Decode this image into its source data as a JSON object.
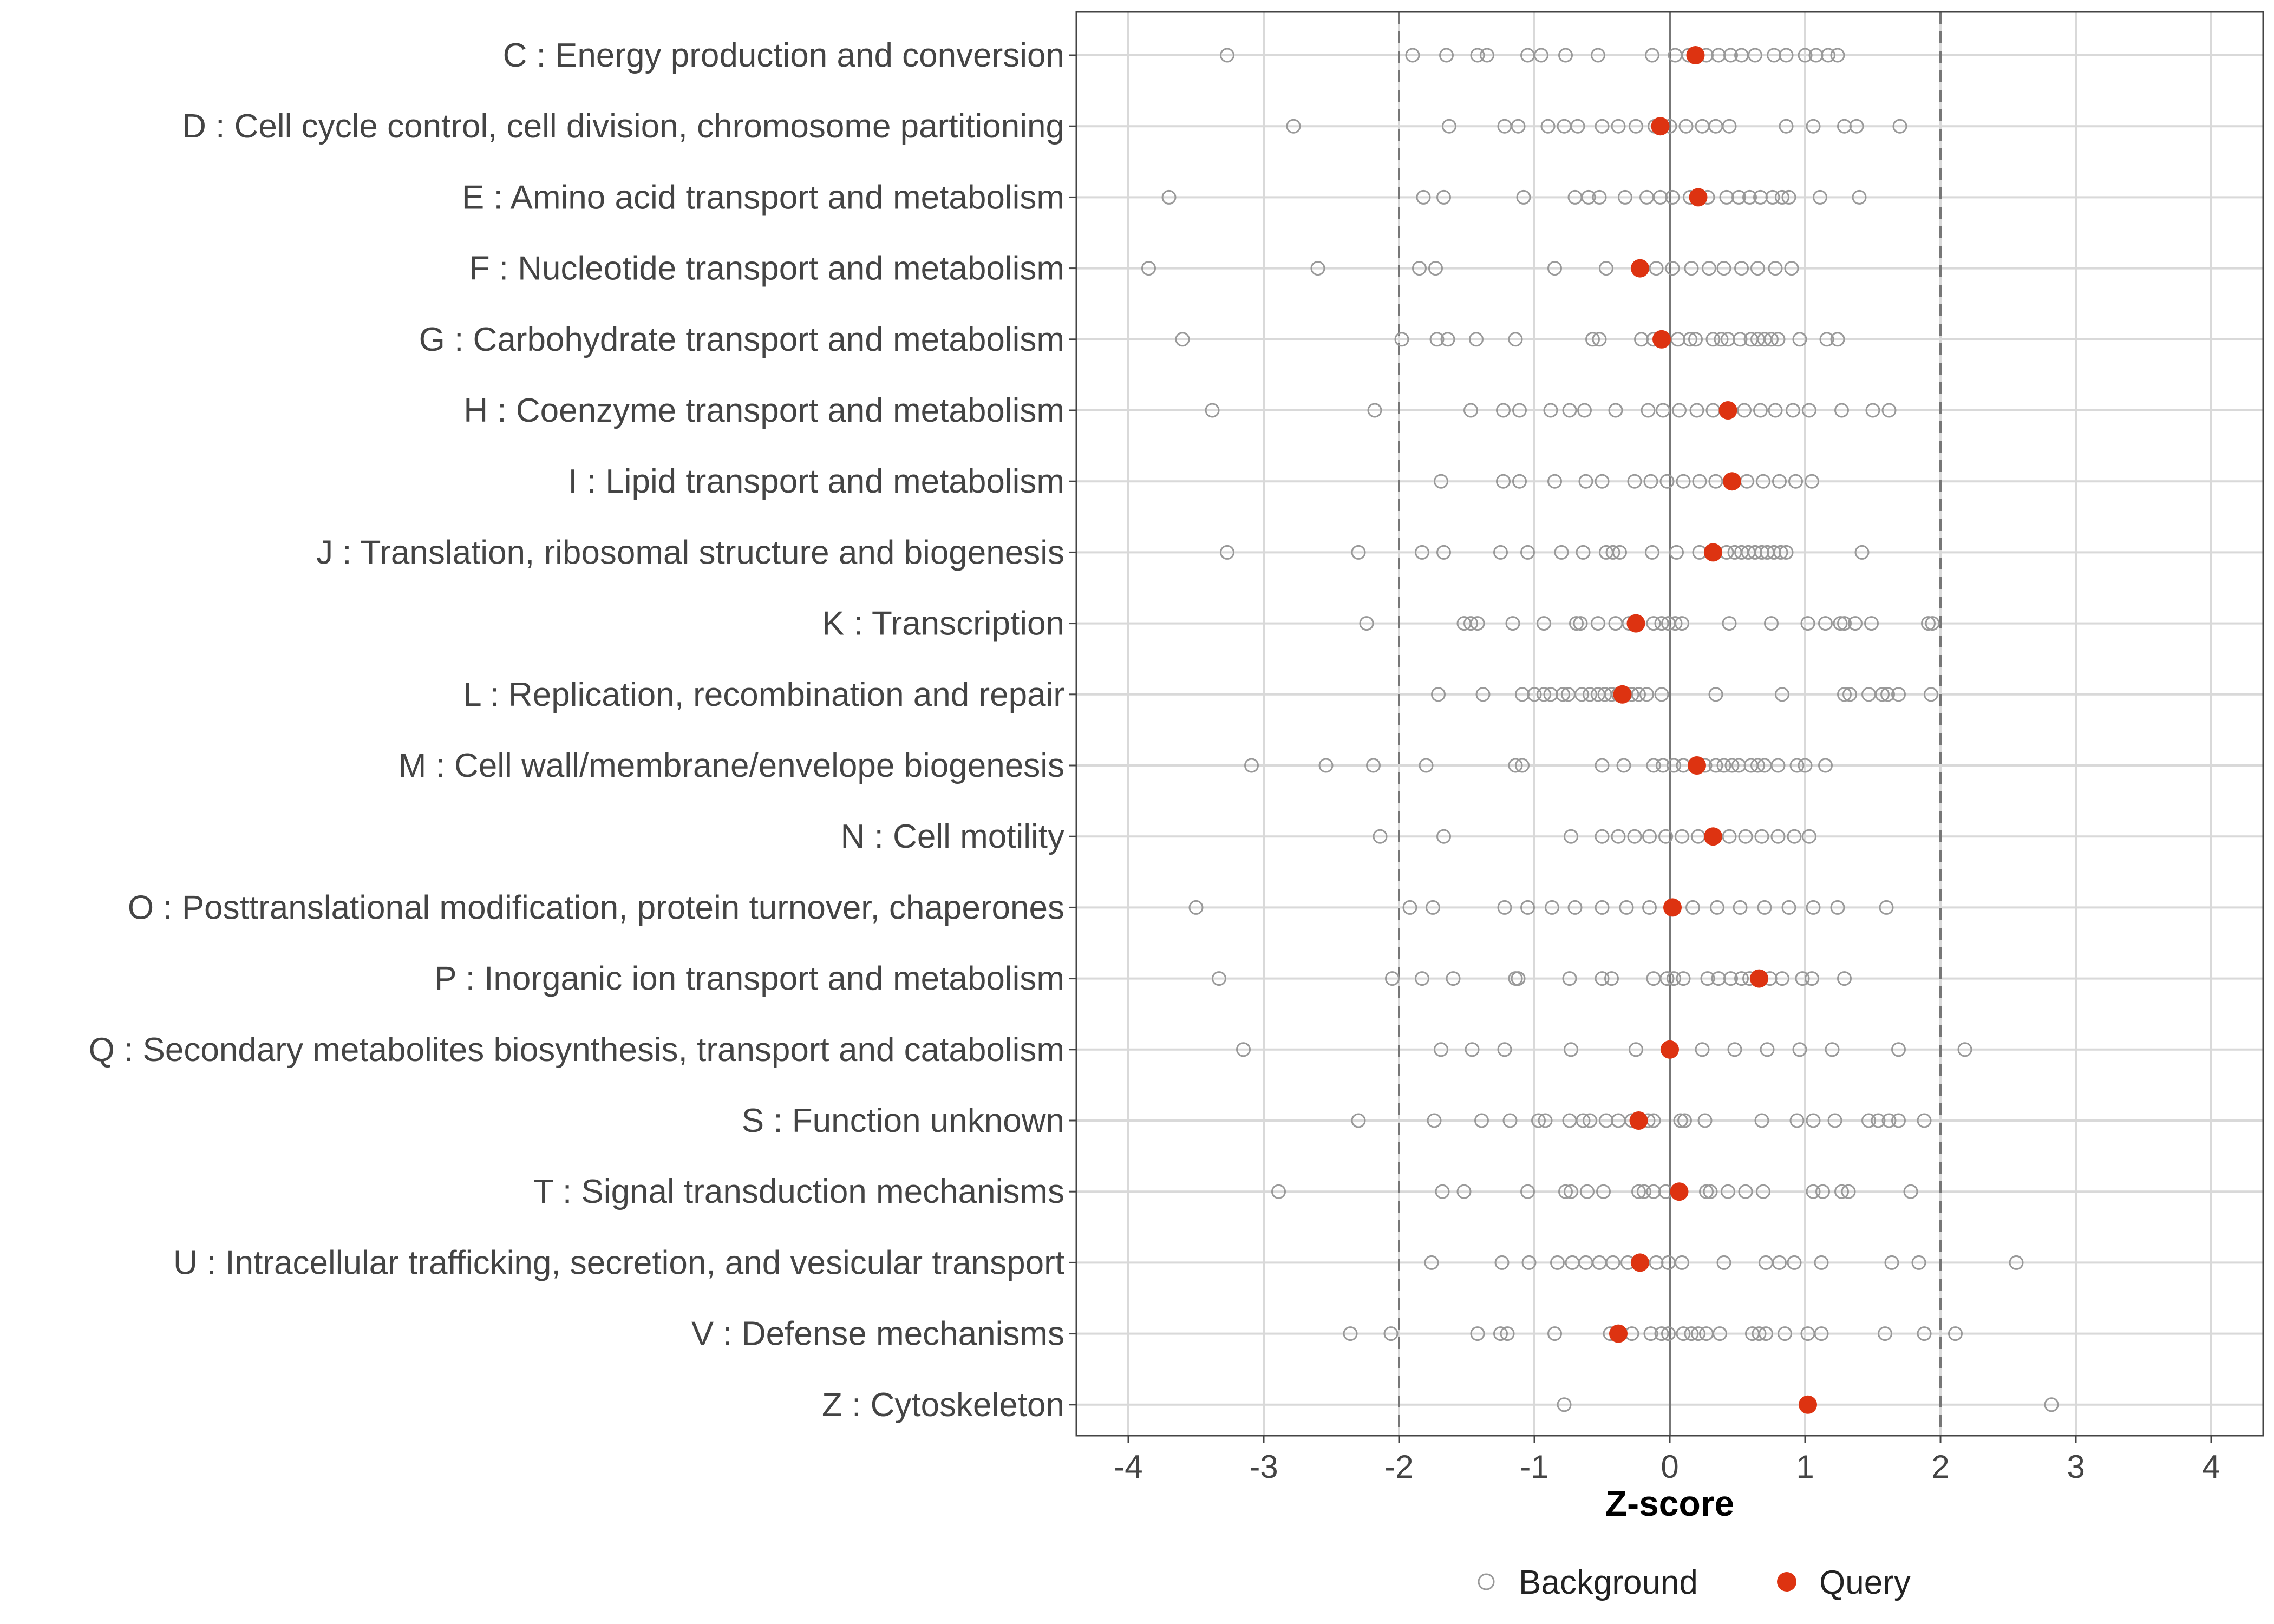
{
  "chart_data": {
    "type": "scatter",
    "title": "",
    "xlabel": "Z-score",
    "ylabel": "",
    "xlim": [
      -4.4,
      4.4
    ],
    "x_ticks": [
      -4,
      -3,
      -2,
      -1,
      0,
      1,
      2,
      3,
      4
    ],
    "x_tick_labels": [
      "-4",
      "-3",
      "-2",
      "-1",
      "0",
      "1",
      "2",
      "3",
      "4"
    ],
    "reference_lines": [
      {
        "x": -2,
        "style": "dashed"
      },
      {
        "x": 0,
        "style": "solid"
      },
      {
        "x": 2,
        "style": "dashed"
      }
    ],
    "grid": true,
    "legend": {
      "position": "bottom",
      "entries": [
        "Background",
        "Query"
      ]
    },
    "colors": {
      "background_stroke": "#999999",
      "query_fill": "#dd3311",
      "grid": "#d9d9d9",
      "refline": "#777777"
    },
    "categories": [
      {
        "label": "C : Energy production and conversion",
        "query": 0.19,
        "background": [
          -3.27,
          -1.9,
          -1.65,
          -1.42,
          -1.35,
          -1.05,
          -0.95,
          -0.77,
          -0.53,
          -0.13,
          0.04,
          0.14,
          0.27,
          0.36,
          0.45,
          0.53,
          0.63,
          0.77,
          0.86,
          1.0,
          1.08,
          1.17,
          1.24
        ]
      },
      {
        "label": "D : Cell cycle control, cell division, chromosome partitioning",
        "query": -0.07,
        "background": [
          -2.78,
          -1.63,
          -1.22,
          -1.12,
          -0.9,
          -0.78,
          -0.68,
          -0.5,
          -0.38,
          -0.25,
          -0.11,
          0.0,
          0.12,
          0.24,
          0.34,
          0.44,
          0.86,
          1.06,
          1.29,
          1.38,
          1.7
        ]
      },
      {
        "label": "E : Amino acid transport and metabolism",
        "query": 0.21,
        "background": [
          -3.7,
          -1.82,
          -1.67,
          -1.08,
          -0.7,
          -0.6,
          -0.52,
          -0.33,
          -0.17,
          -0.07,
          0.02,
          0.15,
          0.28,
          0.42,
          0.51,
          0.59,
          0.67,
          0.76,
          0.83,
          0.88,
          1.11,
          1.4
        ]
      },
      {
        "label": "F : Nucleotide transport and metabolism",
        "query": -0.22,
        "background": [
          -3.85,
          -2.6,
          -1.85,
          -1.73,
          -0.85,
          -0.47,
          -0.1,
          0.02,
          0.16,
          0.29,
          0.4,
          0.53,
          0.65,
          0.78,
          0.9
        ]
      },
      {
        "label": "G : Carbohydrate transport and metabolism",
        "query": -0.06,
        "background": [
          -3.6,
          -1.98,
          -1.72,
          -1.64,
          -1.43,
          -1.14,
          -0.57,
          -0.52,
          -0.21,
          -0.12,
          0.06,
          0.15,
          0.19,
          0.32,
          0.38,
          0.43,
          0.52,
          0.6,
          0.65,
          0.7,
          0.75,
          0.8,
          0.96,
          1.16,
          1.24
        ]
      },
      {
        "label": "H : Coenzyme transport and metabolism",
        "query": 0.43,
        "background": [
          -3.38,
          -2.18,
          -1.47,
          -1.23,
          -1.11,
          -0.88,
          -0.74,
          -0.63,
          -0.4,
          -0.16,
          -0.05,
          0.07,
          0.2,
          0.32,
          0.55,
          0.67,
          0.78,
          0.91,
          1.03,
          1.27,
          1.5,
          1.62
        ]
      },
      {
        "label": "I : Lipid transport and metabolism",
        "query": 0.46,
        "background": [
          -1.69,
          -1.23,
          -1.11,
          -0.85,
          -0.62,
          -0.5,
          -0.26,
          -0.14,
          -0.02,
          0.1,
          0.22,
          0.34,
          0.57,
          0.69,
          0.81,
          0.93,
          1.05
        ]
      },
      {
        "label": "J : Translation, ribosomal structure and biogenesis",
        "query": 0.32,
        "background": [
          -3.27,
          -2.3,
          -1.83,
          -1.67,
          -1.25,
          -1.05,
          -0.8,
          -0.64,
          -0.47,
          -0.42,
          -0.37,
          -0.13,
          0.05,
          0.22,
          0.42,
          0.48,
          0.53,
          0.58,
          0.63,
          0.68,
          0.72,
          0.77,
          0.82,
          0.86,
          1.42
        ]
      },
      {
        "label": "K : Transcription",
        "query": -0.25,
        "background": [
          -2.24,
          -1.52,
          -1.47,
          -1.42,
          -1.16,
          -0.93,
          -0.69,
          -0.66,
          -0.53,
          -0.4,
          -0.3,
          -0.12,
          -0.06,
          -0.01,
          0.04,
          0.09,
          0.44,
          0.75,
          1.02,
          1.15,
          1.26,
          1.29,
          1.37,
          1.49,
          1.91,
          1.94
        ]
      },
      {
        "label": "L : Replication, recombination and repair",
        "query": -0.35,
        "background": [
          -1.71,
          -1.38,
          -1.09,
          -1.0,
          -0.93,
          -0.88,
          -0.79,
          -0.75,
          -0.65,
          -0.59,
          -0.53,
          -0.48,
          -0.43,
          -0.38,
          -0.33,
          -0.28,
          -0.23,
          -0.17,
          -0.06,
          0.34,
          0.83,
          1.29,
          1.33,
          1.47,
          1.57,
          1.61,
          1.69,
          1.93
        ]
      },
      {
        "label": "M : Cell wall/membrane/envelope biogenesis",
        "query": 0.2,
        "background": [
          -3.09,
          -2.54,
          -2.19,
          -1.8,
          -1.14,
          -1.09,
          -0.5,
          -0.34,
          -0.12,
          -0.05,
          0.03,
          0.1,
          0.26,
          0.34,
          0.4,
          0.46,
          0.51,
          0.6,
          0.65,
          0.7,
          0.8,
          0.94,
          1.0,
          1.15
        ]
      },
      {
        "label": "N : Cell motility",
        "query": 0.32,
        "background": [
          -2.14,
          -1.67,
          -0.73,
          -0.5,
          -0.38,
          -0.26,
          -0.15,
          -0.03,
          0.09,
          0.21,
          0.44,
          0.56,
          0.68,
          0.8,
          0.92,
          1.03
        ]
      },
      {
        "label": "O : Posttranslational modification, protein turnover, chaperones",
        "query": 0.02,
        "background": [
          -3.5,
          -1.92,
          -1.75,
          -1.22,
          -1.05,
          -0.87,
          -0.7,
          -0.5,
          -0.32,
          -0.15,
          0.17,
          0.35,
          0.52,
          0.7,
          0.88,
          1.06,
          1.24,
          1.6
        ]
      },
      {
        "label": "P : Inorganic ion transport and metabolism",
        "query": 0.66,
        "background": [
          -3.33,
          -2.05,
          -1.83,
          -1.6,
          -1.14,
          -1.12,
          -0.74,
          -0.5,
          -0.43,
          -0.12,
          -0.02,
          0.03,
          0.1,
          0.28,
          0.36,
          0.45,
          0.53,
          0.59,
          0.74,
          0.83,
          0.98,
          1.05,
          1.29
        ]
      },
      {
        "label": "Q : Secondary metabolites biosynthesis, transport and catabolism",
        "query": 0.0,
        "background": [
          -3.15,
          -1.69,
          -1.46,
          -1.22,
          -0.73,
          -0.25,
          0.24,
          0.48,
          0.72,
          0.96,
          1.2,
          1.69,
          2.18
        ]
      },
      {
        "label": "S : Function unknown",
        "query": -0.23,
        "background": [
          -2.3,
          -1.74,
          -1.39,
          -1.18,
          -0.97,
          -0.92,
          -0.74,
          -0.64,
          -0.59,
          -0.47,
          -0.38,
          -0.28,
          -0.16,
          -0.12,
          0.08,
          0.11,
          0.26,
          0.68,
          0.94,
          1.06,
          1.22,
          1.47,
          1.54,
          1.62,
          1.69,
          1.88
        ]
      },
      {
        "label": "T : Signal transduction mechanisms",
        "query": 0.07,
        "background": [
          -2.89,
          -1.68,
          -1.52,
          -1.05,
          -0.77,
          -0.73,
          -0.61,
          -0.49,
          -0.23,
          -0.19,
          -0.12,
          -0.03,
          0.27,
          0.3,
          0.43,
          0.56,
          0.69,
          1.06,
          1.13,
          1.27,
          1.32,
          1.78
        ]
      },
      {
        "label": "U : Intracellular trafficking, secretion, and vesicular transport",
        "query": -0.22,
        "background": [
          -1.76,
          -1.24,
          -1.04,
          -0.83,
          -0.72,
          -0.62,
          -0.52,
          -0.42,
          -0.31,
          -0.1,
          -0.01,
          0.09,
          0.4,
          0.71,
          0.81,
          0.92,
          1.12,
          1.64,
          1.84,
          2.56
        ]
      },
      {
        "label": "V : Defense mechanisms",
        "query": -0.38,
        "background": [
          -2.36,
          -2.06,
          -1.42,
          -1.25,
          -1.2,
          -0.85,
          -0.44,
          -0.37,
          -0.28,
          -0.14,
          -0.06,
          -0.01,
          0.1,
          0.16,
          0.21,
          0.27,
          0.37,
          0.61,
          0.66,
          0.71,
          0.85,
          1.02,
          1.12,
          1.59,
          1.88,
          2.11
        ]
      },
      {
        "label": "Z : Cytoskeleton",
        "query": 1.02,
        "background": [
          -0.78,
          2.82
        ]
      }
    ]
  }
}
